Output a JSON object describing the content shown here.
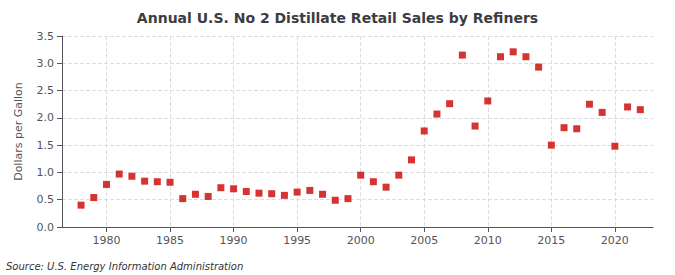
{
  "chart_data": {
    "type": "scatter",
    "title": "Annual U.S. No 2 Distillate Retail Sales by Refiners",
    "ylabel": "Dollars per Gallon",
    "annotations": [
      "Source: U.S. Energy Information Administration"
    ],
    "color": "#cc0000",
    "marker": "square",
    "grid": true,
    "xlim": [
      1976.5,
      2023
    ],
    "xticks": [
      1980,
      1985,
      1990,
      1995,
      2000,
      2005,
      2010,
      2015,
      2020
    ],
    "ylim": [
      0.0,
      3.5
    ],
    "yticks": [
      {
        "value": 0,
        "label": "0.0"
      },
      0.5,
      {
        "value": 1,
        "label": "1.0"
      },
      1.5,
      {
        "value": 2,
        "label": "2.0"
      },
      2.5,
      {
        "value": 3,
        "label": "3.0"
      },
      3.5
    ],
    "x": [
      1978,
      1979,
      1980,
      1981,
      1982,
      1983,
      1984,
      1985,
      1986,
      1987,
      1988,
      1989,
      1990,
      1991,
      1992,
      1993,
      1994,
      1995,
      1996,
      1997,
      1998,
      1999,
      2000,
      2001,
      2002,
      2003,
      2004,
      2005,
      2006,
      2007,
      2008,
      2009,
      2010,
      2011,
      2012,
      2013,
      2014,
      2015,
      2016,
      2017,
      2018,
      2019,
      2020,
      2021,
      2022
    ],
    "values": [
      0.4,
      0.54,
      0.78,
      0.97,
      0.93,
      0.84,
      0.83,
      0.82,
      0.52,
      0.6,
      0.56,
      0.72,
      0.7,
      0.65,
      0.62,
      0.61,
      0.58,
      0.64,
      0.67,
      0.6,
      0.49,
      0.52,
      0.95,
      0.83,
      0.73,
      0.95,
      1.23,
      1.76,
      2.07,
      2.26,
      3.15,
      1.85,
      2.31,
      3.12,
      3.21,
      3.12,
      2.93,
      1.5,
      1.82,
      1.8,
      2.25,
      2.1,
      1.48,
      2.2,
      2.15
    ]
  }
}
